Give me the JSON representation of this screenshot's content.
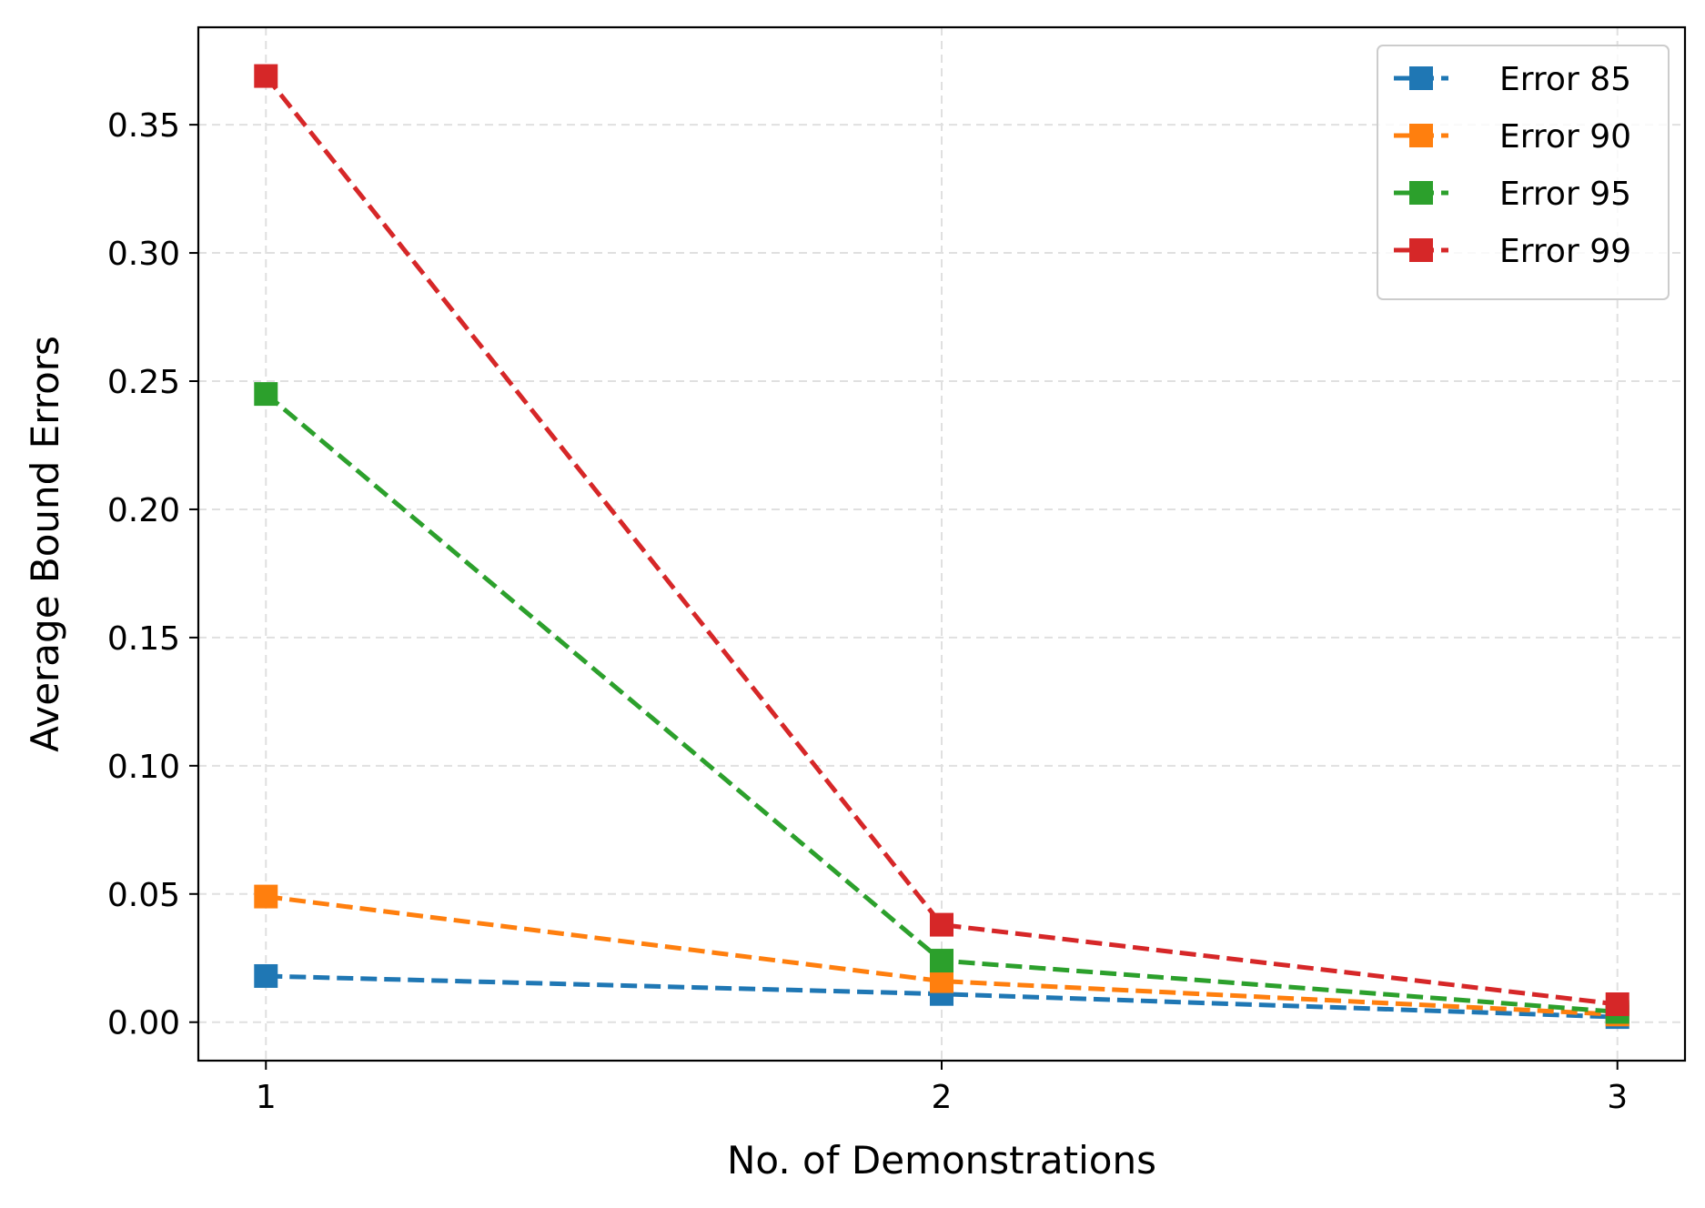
{
  "chart_data": {
    "type": "line",
    "title": "",
    "xlabel": "No. of Demonstrations",
    "ylabel": "Average Bound Errors",
    "x": [
      1,
      2,
      3
    ],
    "xticks": [
      "1",
      "2",
      "3"
    ],
    "xlim": [
      0.9,
      3.1
    ],
    "yticks": [
      "0.00",
      "0.05",
      "0.10",
      "0.15",
      "0.20",
      "0.25",
      "0.30",
      "0.35"
    ],
    "ylim": [
      -0.015,
      0.388
    ],
    "grid": true,
    "legend_position": "top-right",
    "line_style": "dashed",
    "marker": "square",
    "series": [
      {
        "name": "Error 85",
        "color": "#1f77b4",
        "values": [
          0.018,
          0.011,
          0.002
        ]
      },
      {
        "name": "Error 90",
        "color": "#ff7f0e",
        "values": [
          0.049,
          0.016,
          0.003
        ]
      },
      {
        "name": "Error 95",
        "color": "#2ca02c",
        "values": [
          0.245,
          0.024,
          0.004
        ]
      },
      {
        "name": "Error 99",
        "color": "#d62728",
        "values": [
          0.369,
          0.038,
          0.007
        ]
      }
    ]
  }
}
